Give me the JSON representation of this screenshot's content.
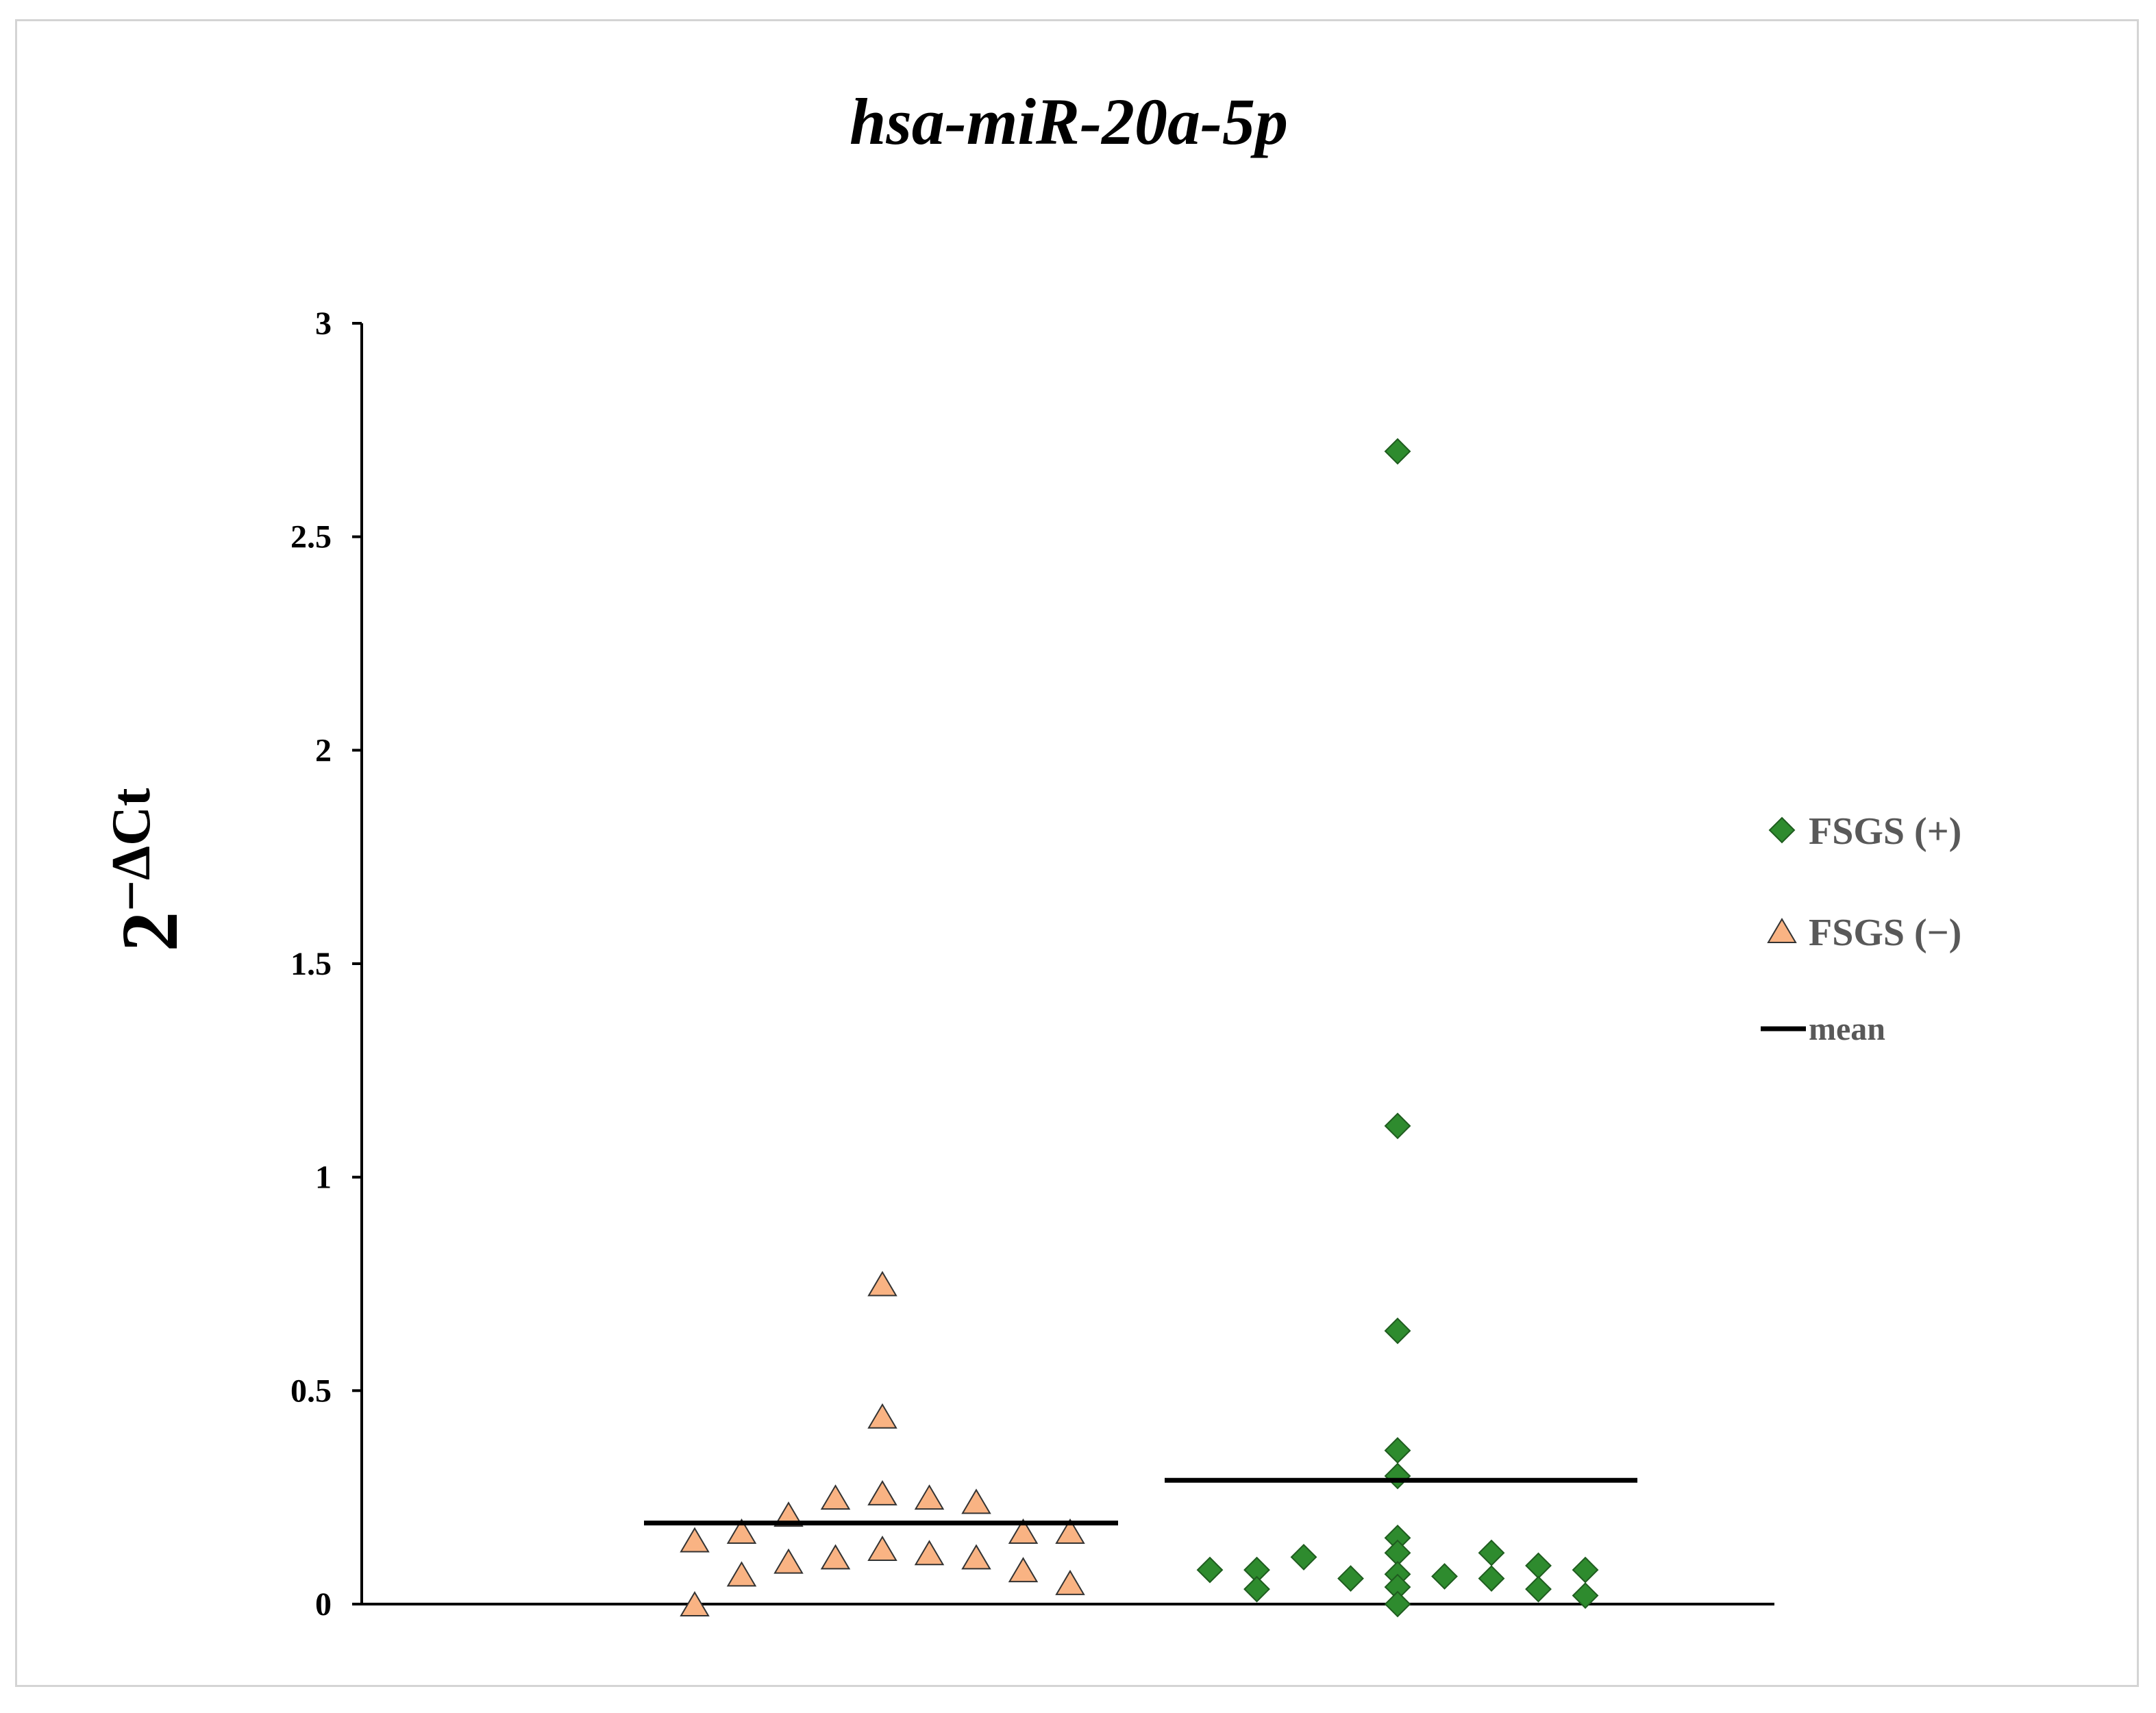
{
  "chart_data": {
    "type": "scatter",
    "title": "hsa-miR-20a-5p",
    "xlabel": "",
    "ylabel": "2−ΔCt",
    "ylabel_base": "2",
    "ylabel_exponent": "−ΔCt",
    "ylim": [
      0,
      3
    ],
    "yticks": [
      "0",
      "0.5",
      "1",
      "1.5",
      "2",
      "2.5",
      "3"
    ],
    "grid": false,
    "legend_position": "right",
    "legend": [
      {
        "label": "FSGS (+)",
        "marker": "diamond",
        "color": "#2e8b2e"
      },
      {
        "label": "FSGS (−)",
        "marker": "triangle",
        "color": "#f9b383"
      },
      {
        "label": "mean",
        "marker": "line",
        "color": "#000000"
      }
    ],
    "groups": [
      {
        "name": "FSGS (−)",
        "marker": "triangle",
        "color": "#f9b383",
        "mean": 0.19,
        "points": [
          {
            "x": -4,
            "y": 0.15
          },
          {
            "x": -4,
            "y": 0.0
          },
          {
            "x": -3,
            "y": 0.17
          },
          {
            "x": -3,
            "y": 0.07
          },
          {
            "x": -2,
            "y": 0.21
          },
          {
            "x": -2,
            "y": 0.1
          },
          {
            "x": -1,
            "y": 0.25
          },
          {
            "x": -1,
            "y": 0.11
          },
          {
            "x": 0,
            "y": 0.75
          },
          {
            "x": 0,
            "y": 0.44
          },
          {
            "x": 0,
            "y": 0.26
          },
          {
            "x": 0,
            "y": 0.13
          },
          {
            "x": 1,
            "y": 0.25
          },
          {
            "x": 1,
            "y": 0.12
          },
          {
            "x": 2,
            "y": 0.24
          },
          {
            "x": 2,
            "y": 0.11
          },
          {
            "x": 3,
            "y": 0.17
          },
          {
            "x": 3,
            "y": 0.08
          },
          {
            "x": 4,
            "y": 0.17
          },
          {
            "x": 4,
            "y": 0.05
          }
        ]
      },
      {
        "name": "FSGS (+)",
        "marker": "diamond",
        "color": "#2e8b2e",
        "mean": 0.29,
        "points": [
          {
            "x": -4,
            "y": 0.08
          },
          {
            "x": -3,
            "y": 0.08
          },
          {
            "x": -3,
            "y": 0.035
          },
          {
            "x": -2,
            "y": 0.11
          },
          {
            "x": -1,
            "y": 0.06
          },
          {
            "x": 0,
            "y": 2.7
          },
          {
            "x": 0,
            "y": 1.12
          },
          {
            "x": 0,
            "y": 0.64
          },
          {
            "x": 0,
            "y": 0.36
          },
          {
            "x": 0,
            "y": 0.3
          },
          {
            "x": 0,
            "y": 0.155
          },
          {
            "x": 0,
            "y": 0.12
          },
          {
            "x": 0,
            "y": 0.07
          },
          {
            "x": 0,
            "y": 0.04
          },
          {
            "x": 0,
            "y": 0.0
          },
          {
            "x": 1,
            "y": 0.065
          },
          {
            "x": 2,
            "y": 0.12
          },
          {
            "x": 2,
            "y": 0.06
          },
          {
            "x": 3,
            "y": 0.09
          },
          {
            "x": 3,
            "y": 0.035
          },
          {
            "x": 4,
            "y": 0.08
          },
          {
            "x": 4,
            "y": 0.02
          }
        ]
      }
    ]
  }
}
